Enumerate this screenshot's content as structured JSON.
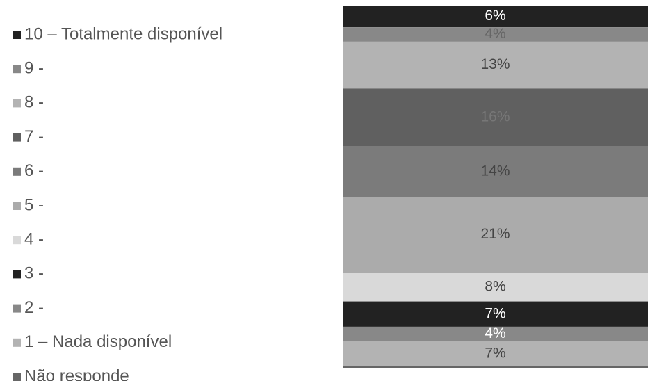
{
  "chart_data": {
    "type": "stacked-bar",
    "orientation": "vertical",
    "series": [
      {
        "name": "10 – Totalmente disponível",
        "color": "#222222",
        "label_color": "#ffffff",
        "values": [
          6
        ],
        "value_labels": [
          "6%"
        ]
      },
      {
        "name": "9 -",
        "color": "#888888",
        "label_color": "#666666",
        "values": [
          4
        ],
        "value_labels": [
          "4%"
        ]
      },
      {
        "name": "8 -",
        "color": "#b3b3b3",
        "label_color": "#444444",
        "values": [
          13
        ],
        "value_labels": [
          "13%"
        ]
      },
      {
        "name": "7 -",
        "color": "#606060",
        "label_color": "#777777",
        "values": [
          16
        ],
        "value_labels": [
          "16%"
        ]
      },
      {
        "name": "6 -",
        "color": "#7b7b7b",
        "label_color": "#444444",
        "values": [
          14
        ],
        "value_labels": [
          "14%"
        ]
      },
      {
        "name": "5 -",
        "color": "#ababab",
        "label_color": "#444444",
        "values": [
          21
        ],
        "value_labels": [
          "21%"
        ]
      },
      {
        "name": "4 -",
        "color": "#d9d9d9",
        "label_color": "#444444",
        "values": [
          8
        ],
        "value_labels": [
          "8%"
        ]
      },
      {
        "name": "3 -",
        "color": "#222222",
        "label_color": "#ffffff",
        "values": [
          7
        ],
        "value_labels": [
          "7%"
        ]
      },
      {
        "name": "2 -",
        "color": "#888888",
        "label_color": "#ffffff",
        "values": [
          4
        ],
        "value_labels": [
          "4%"
        ]
      },
      {
        "name": "1 – Nada disponível",
        "color": "#b3b3b3",
        "label_color": "#444444",
        "values": [
          7
        ],
        "value_labels": [
          "7%"
        ]
      },
      {
        "name": "Não responde",
        "color": "#666666",
        "label_color": "#444444",
        "values": [
          0
        ],
        "value_labels": [
          null
        ]
      }
    ],
    "ylim": [
      0,
      100
    ]
  }
}
